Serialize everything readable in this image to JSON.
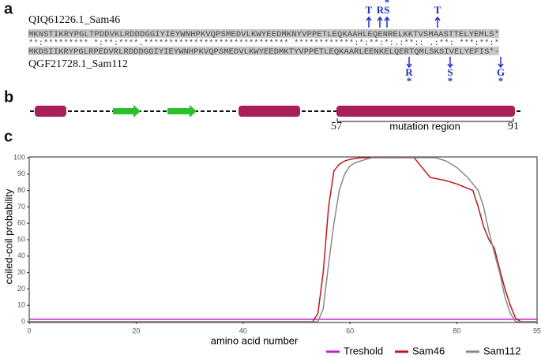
{
  "panels": {
    "a": "a",
    "b": "b",
    "c": "c"
  },
  "alignment": {
    "top_label": "QIQ61226.1_Sam46",
    "top_seq": "MKNSTIKRYPGLTPDDVKLRDDDGGIYIEYWNHPKVQPSMEDVLKWYEEDMKNYVPPETLEQKAAHLEQENRELKKTVSMAASTTELYEMLS*",
    "conservation": "**:********* *:**:****.***************************** ************:*:**:*:.:**:: .:**: ***:**:*",
    "bottom_seq": "MKDSIIKRYPGLRPEDVRLRDDDGGIYIEYWNHPKVQPSMEDVLKWYEEDMKTYVPPETLEQKAARLEENKELQERTQMLSKSIVELYEFIS*-",
    "bottom_label": "QGF21728.1_Sam112",
    "mutations_top": [
      {
        "text": "T",
        "star": ""
      },
      {
        "text": "RS",
        "star": "*"
      },
      {
        "text": "T",
        "star": ""
      }
    ],
    "mutations_bottom": [
      {
        "text": "R",
        "star": "*"
      },
      {
        "text": "S",
        "star": "*"
      },
      {
        "text": "G",
        "star": "*"
      }
    ]
  },
  "structure": {
    "start": "57",
    "end": "91",
    "region": "mutation region"
  },
  "chart_data": {
    "type": "line",
    "xlabel": "amino acid number",
    "ylabel": "coiled-coil probability",
    "xlim": [
      0,
      95
    ],
    "ylim": [
      0,
      100
    ],
    "xticks": [
      0,
      20,
      40,
      60,
      80,
      95
    ],
    "yticks": [
      0,
      10,
      20,
      30,
      40,
      50,
      60,
      70,
      80,
      90,
      100
    ],
    "series": [
      {
        "name": "Treshold",
        "color": "#c020c8",
        "x": [
          0,
          95
        ],
        "values": [
          1.5,
          1.5
        ]
      },
      {
        "name": "Sam46",
        "color": "#c0161b",
        "x": [
          0,
          53,
          54,
          55,
          56,
          57,
          58,
          59,
          60,
          62,
          64,
          72,
          73,
          75,
          78,
          80,
          83,
          84,
          85,
          86,
          87,
          88,
          89,
          90,
          91,
          92,
          95
        ],
        "values": [
          0,
          0,
          5,
          30,
          70,
          92,
          96,
          98,
          99,
          100,
          100,
          100,
          96,
          88,
          86,
          84,
          80,
          70,
          58,
          50,
          45,
          32,
          20,
          10,
          2,
          0,
          0
        ]
      },
      {
        "name": "Sam112",
        "color": "#888888",
        "x": [
          0,
          54,
          55,
          56,
          57,
          58,
          59,
          60,
          61,
          63,
          64,
          76,
          78,
          80,
          82,
          84,
          85,
          86,
          87,
          88,
          89,
          90,
          91,
          95
        ],
        "values": [
          0,
          0,
          8,
          35,
          60,
          80,
          90,
          95,
          97,
          99,
          100,
          100,
          98,
          94,
          88,
          80,
          70,
          55,
          42,
          30,
          15,
          5,
          0,
          0
        ]
      }
    ]
  }
}
